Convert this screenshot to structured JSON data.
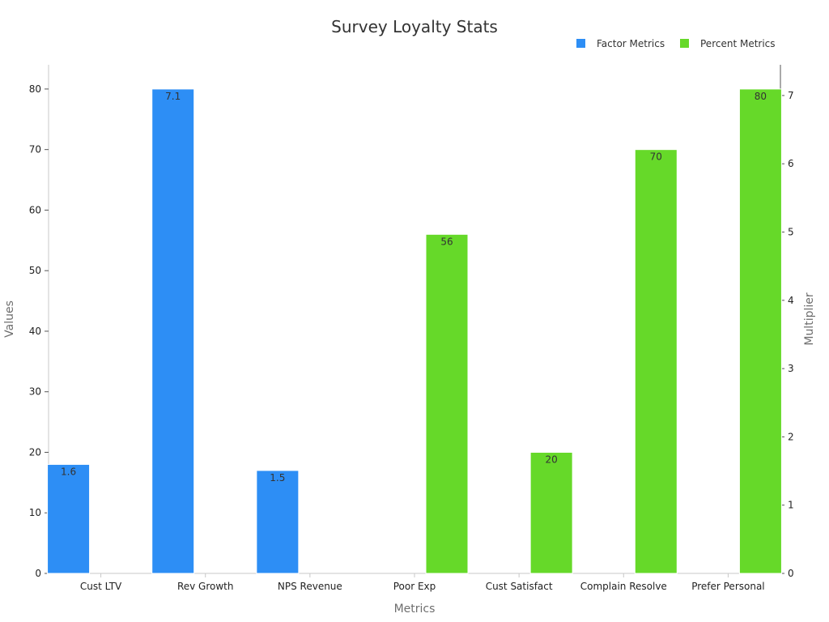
{
  "chart_data": {
    "type": "bar",
    "title": "Survey Loyalty Stats",
    "xlabel": "Metrics",
    "ylabel": "Values",
    "y2label": "Multiplier",
    "ylim": [
      0,
      84
    ],
    "y2lim": [
      0,
      7.45
    ],
    "yticks": [
      0,
      10,
      20,
      30,
      40,
      50,
      60,
      70,
      80
    ],
    "y2ticks": [
      0,
      1,
      2,
      3,
      4,
      5,
      6,
      7
    ],
    "categories": [
      "Cust LTV",
      "Rev Growth",
      "NPS Revenue",
      "Poor Exp",
      "Cust Satisfact",
      "Complain Resolve",
      "Prefer Personal"
    ],
    "series": [
      {
        "name": "Factor Metrics",
        "color": "#2d8ef5",
        "values": [
          18,
          80,
          17,
          null,
          null,
          null,
          null
        ],
        "labels": [
          "1.6",
          "7.1",
          "1.5",
          null,
          null,
          null,
          null
        ]
      },
      {
        "name": "Percent Metrics",
        "color": "#66d929",
        "values": [
          null,
          null,
          null,
          56,
          20,
          70,
          80
        ],
        "labels": [
          null,
          null,
          null,
          "56",
          "20",
          "70",
          "80"
        ]
      }
    ],
    "legend_position": "top-right"
  }
}
